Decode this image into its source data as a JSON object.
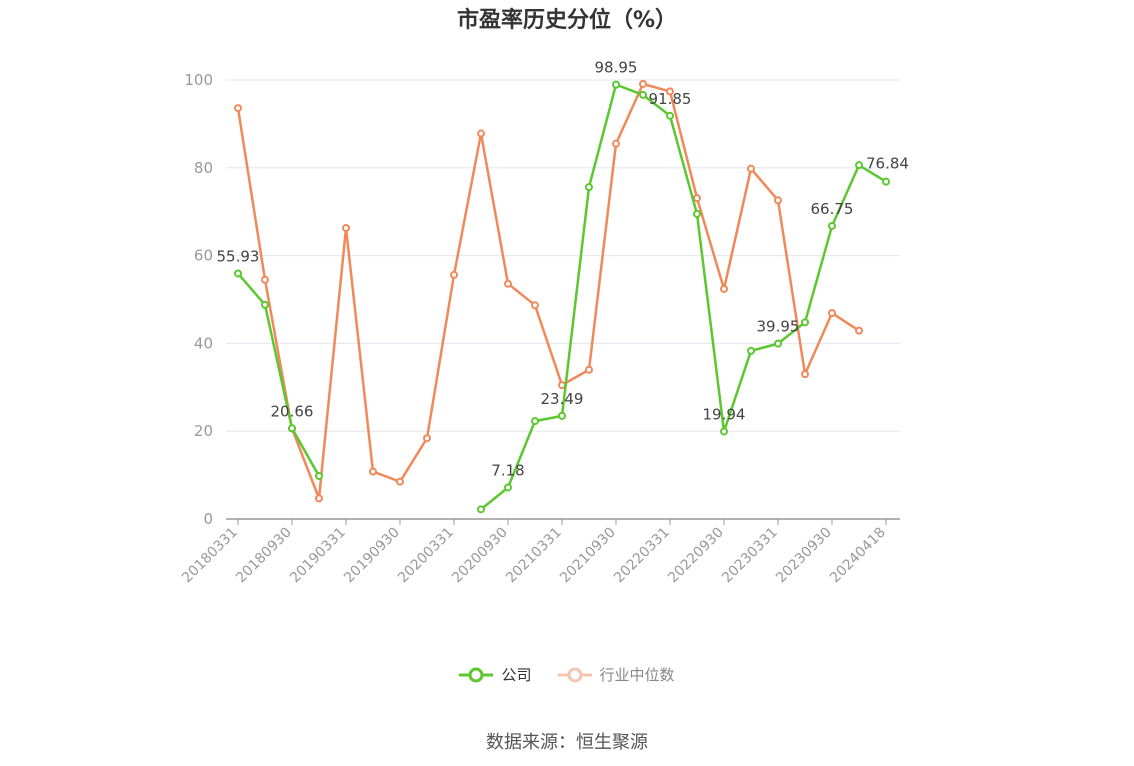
{
  "chart_data": {
    "type": "line",
    "title": "市盈率历史分位（%）",
    "xlabel": "",
    "ylabel": "",
    "ylim": [
      0,
      100
    ],
    "yticks": [
      0,
      20,
      40,
      60,
      80,
      100
    ],
    "grid": true,
    "legend_position": "bottom",
    "x": [
      "20180331",
      "20180630",
      "20180930",
      "20181231",
      "20190331",
      "20190630",
      "20190930",
      "20191231",
      "20200331",
      "20200630",
      "20200930",
      "20201231",
      "20210331",
      "20210630",
      "20210930",
      "20211231",
      "20220331",
      "20220630",
      "20220930",
      "20221231",
      "20230331",
      "20230630",
      "20230930",
      "20231231",
      "20240418"
    ],
    "x_tick_labels": [
      "20180331",
      "20180930",
      "20190331",
      "20190930",
      "20200331",
      "20200930",
      "20210331",
      "20210930",
      "20220331",
      "20220930",
      "20230331",
      "20230930",
      "20240418"
    ],
    "series": [
      {
        "name": "公司",
        "color": "#5cc72f",
        "values": [
          55.93,
          48.8,
          20.66,
          9.8,
          null,
          null,
          null,
          null,
          null,
          2.2,
          7.18,
          22.3,
          23.49,
          75.6,
          98.95,
          96.6,
          91.85,
          69.5,
          19.94,
          38.3,
          39.95,
          44.8,
          66.75,
          80.6,
          76.84
        ],
        "labels": [
          {
            "index": 0,
            "text": "55.93"
          },
          {
            "index": 2,
            "text": "20.66"
          },
          {
            "index": 10,
            "text": "7.18"
          },
          {
            "index": 12,
            "text": "23.49"
          },
          {
            "index": 14,
            "text": "98.95"
          },
          {
            "index": 16,
            "text": "91.85"
          },
          {
            "index": 18,
            "text": "19.94"
          },
          {
            "index": 20,
            "text": "39.95"
          },
          {
            "index": 22,
            "text": "66.75"
          },
          {
            "index": 24,
            "text": "76.84"
          }
        ]
      },
      {
        "name": "行业中位数",
        "color": "#f0895a",
        "values": [
          93.6,
          54.5,
          20.6,
          4.7,
          66.3,
          10.8,
          8.5,
          18.4,
          55.6,
          87.8,
          53.6,
          48.7,
          30.5,
          34.0,
          85.5,
          99.1,
          97.4,
          73.1,
          52.4,
          79.8,
          72.6,
          33.0,
          46.9,
          42.9,
          null
        ]
      }
    ]
  },
  "source_text": "数据来源：恒生聚源"
}
